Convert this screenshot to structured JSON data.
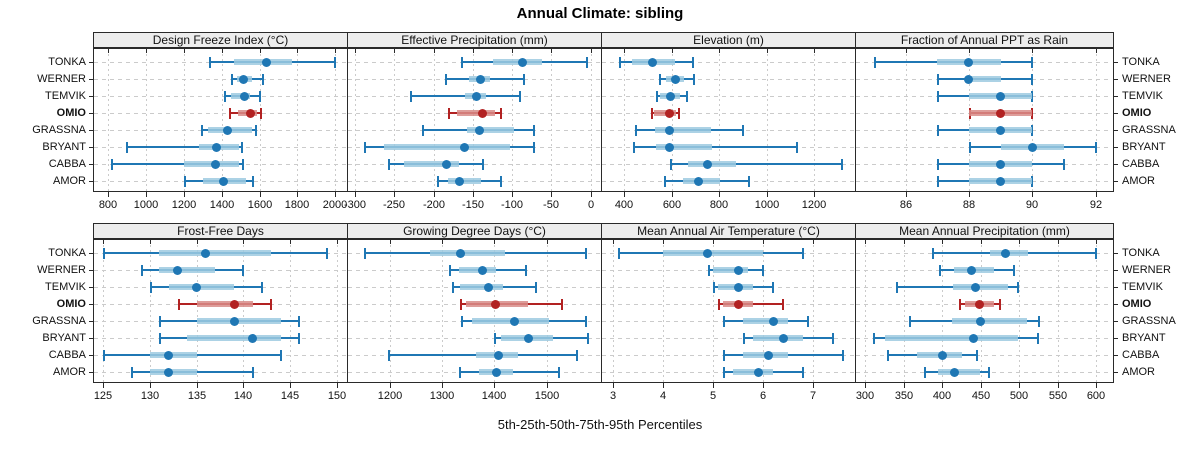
{
  "title": "Annual Climate: sibling",
  "caption": "5th-25th-50th-75th-95th Percentiles",
  "colors": {
    "series_blue": "#1f77b4",
    "series_blue_band": "#9ecae1",
    "highlight_red": "#b22222",
    "highlight_red_band": "#d88c88",
    "grid": "#cbcbcb",
    "header_bg": "#ededed",
    "border": "#2a2a2a",
    "text": "#111111"
  },
  "chart_data": {
    "type": "trellis-percentile-dotplot",
    "percentiles": [
      5,
      25,
      50,
      75,
      95
    ],
    "stations": [
      "TONKA",
      "WERNER",
      "TEMVIK",
      "OMIO",
      "GRASSNA",
      "BRYANT",
      "CABBA",
      "AMOR"
    ],
    "highlight_station": "OMIO",
    "grid_on": true,
    "panels": [
      {
        "title": "Design Freeze Index (°C)",
        "grid": {
          "row": 0,
          "col": 0
        },
        "axis": {
          "ticks": [
            800,
            1000,
            1200,
            1400,
            1600,
            1800,
            2000
          ],
          "domain": [
            720,
            2062
          ]
        },
        "values": [
          [
            1335,
            1465,
            1635,
            1770,
            2000
          ],
          [
            1450,
            1480,
            1515,
            1560,
            1620
          ],
          [
            1410,
            1450,
            1520,
            1550,
            1600
          ],
          [
            1440,
            1485,
            1550,
            1585,
            1605
          ],
          [
            1290,
            1330,
            1430,
            1560,
            1580
          ],
          [
            895,
            1280,
            1370,
            1490,
            1505
          ],
          [
            815,
            1200,
            1365,
            1490,
            1510
          ],
          [
            1200,
            1300,
            1410,
            1530,
            1565
          ]
        ]
      },
      {
        "title": "Effective Precipitation (mm)",
        "grid": {
          "row": 0,
          "col": 1
        },
        "axis": {
          "ticks": [
            -300,
            -250,
            -200,
            -150,
            -100,
            -50,
            0
          ],
          "domain": [
            -310,
            13
          ]
        },
        "values": [
          [
            -165,
            -124,
            -87,
            -62,
            -5
          ],
          [
            -185,
            -155,
            -140,
            -128,
            -85
          ],
          [
            -230,
            -160,
            -145,
            -133,
            -90
          ],
          [
            -182,
            -170,
            -138,
            -122,
            -114
          ],
          [
            -215,
            -158,
            -142,
            -97,
            -72
          ],
          [
            -288,
            -263,
            -160,
            -103,
            -72
          ],
          [
            -258,
            -238,
            -183,
            -168,
            -137
          ],
          [
            -195,
            -182,
            -167,
            -140,
            -114
          ]
        ]
      },
      {
        "title": "Elevation (m)",
        "grid": {
          "row": 0,
          "col": 2
        },
        "axis": {
          "ticks": [
            400,
            600,
            800,
            1000,
            1200
          ],
          "domain": [
            303,
            1371
          ]
        },
        "values": [
          [
            380,
            432,
            519,
            614,
            688
          ],
          [
            545,
            575,
            617,
            652,
            695
          ],
          [
            535,
            551,
            596,
            635,
            663
          ],
          [
            512,
            524,
            593,
            618,
            631
          ],
          [
            448,
            531,
            589,
            765,
            898
          ],
          [
            436,
            534,
            592,
            770,
            1129
          ],
          [
            593,
            667,
            749,
            870,
            1318
          ],
          [
            567,
            646,
            712,
            805,
            924
          ]
        ]
      },
      {
        "title": "Fraction of Annual PPT as Rain",
        "grid": {
          "row": 0,
          "col": 3
        },
        "axis": {
          "ticks": [
            86,
            88,
            90,
            92
          ],
          "domain": [
            84.4,
            92.55
          ]
        },
        "values": [
          [
            85,
            87,
            88,
            89,
            90
          ],
          [
            87,
            88,
            88,
            89,
            90
          ],
          [
            87,
            88,
            89,
            90,
            90
          ],
          [
            88,
            88,
            89,
            90,
            90
          ],
          [
            87,
            88,
            89,
            90,
            90
          ],
          [
            88,
            89,
            90,
            91,
            92
          ],
          [
            87,
            88,
            89,
            90,
            91
          ],
          [
            87,
            88,
            89,
            90,
            90
          ]
        ]
      },
      {
        "title": "Frost-Free Days",
        "grid": {
          "row": 1,
          "col": 0
        },
        "axis": {
          "ticks": [
            125,
            130,
            135,
            140,
            145,
            150
          ],
          "domain": [
            123.9,
            151.1
          ]
        },
        "values": [
          [
            125,
            131,
            136,
            143,
            149
          ],
          [
            129,
            131,
            133,
            137,
            140
          ],
          [
            130,
            132,
            135,
            139,
            142
          ],
          [
            133,
            135,
            139,
            141,
            143
          ],
          [
            131,
            135,
            139,
            144,
            146
          ],
          [
            131,
            134,
            141,
            144,
            146
          ],
          [
            125,
            130,
            132,
            135,
            144
          ],
          [
            128,
            130,
            132,
            135,
            141
          ]
        ]
      },
      {
        "title": "Growing Degree Days (°C)",
        "grid": {
          "row": 1,
          "col": 1
        },
        "axis": {
          "ticks": [
            1200,
            1300,
            1400,
            1500
          ],
          "domain": [
            1118,
            1604
          ]
        },
        "values": [
          [
            1150,
            1277,
            1335,
            1420,
            1575
          ],
          [
            1313,
            1332,
            1377,
            1403,
            1460
          ],
          [
            1318,
            1335,
            1389,
            1416,
            1480
          ],
          [
            1335,
            1345,
            1403,
            1465,
            1530
          ],
          [
            1337,
            1358,
            1439,
            1505,
            1575
          ],
          [
            1400,
            1413,
            1466,
            1513,
            1580
          ],
          [
            1197,
            1365,
            1408,
            1445,
            1558
          ],
          [
            1332,
            1370,
            1404,
            1435,
            1524
          ]
        ]
      },
      {
        "title": "Mean Annual Air Temperature (°C)",
        "grid": {
          "row": 1,
          "col": 2
        },
        "axis": {
          "ticks": [
            3,
            4,
            5,
            6,
            7
          ],
          "domain": [
            2.77,
            7.83
          ]
        },
        "values": [
          [
            3.1,
            4.0,
            4.9,
            6.0,
            6.8
          ],
          [
            4.9,
            5.0,
            5.5,
            5.7,
            6.0
          ],
          [
            5.0,
            5.1,
            5.5,
            5.8,
            6.2
          ],
          [
            5.1,
            5.2,
            5.5,
            5.8,
            6.4
          ],
          [
            5.2,
            5.6,
            6.2,
            6.5,
            6.9
          ],
          [
            5.6,
            5.8,
            6.4,
            6.8,
            7.4
          ],
          [
            5.2,
            5.6,
            6.1,
            6.5,
            7.6
          ],
          [
            5.2,
            5.4,
            5.9,
            6.2,
            6.8
          ]
        ]
      },
      {
        "title": "Mean Annual Precipitation (mm)",
        "grid": {
          "row": 1,
          "col": 3
        },
        "axis": {
          "ticks": [
            300,
            350,
            400,
            450,
            500,
            550,
            600
          ],
          "domain": [
            287,
            622
          ]
        },
        "values": [
          [
            387,
            462,
            483,
            512,
            600
          ],
          [
            396,
            415,
            438,
            468,
            494
          ],
          [
            340,
            414,
            443,
            486,
            498
          ],
          [
            422,
            430,
            449,
            468,
            475
          ],
          [
            357,
            413,
            450,
            510,
            526
          ],
          [
            311,
            326,
            441,
            499,
            524
          ],
          [
            329,
            367,
            400,
            426,
            446
          ],
          [
            376,
            395,
            416,
            449,
            461
          ]
        ]
      }
    ]
  }
}
